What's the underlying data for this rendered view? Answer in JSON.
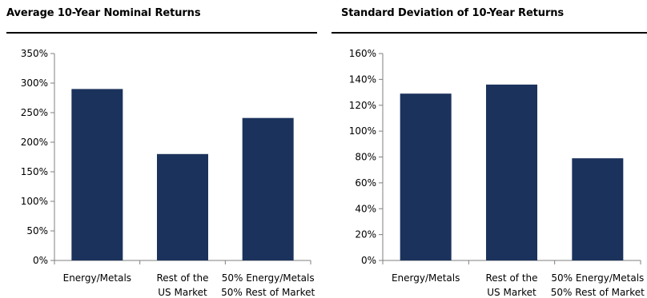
{
  "chart_data": [
    {
      "type": "bar",
      "title": "Average 10-Year Nominal Returns",
      "categories": [
        [
          "Energy/Metals"
        ],
        [
          "Rest of the",
          "US Market"
        ],
        [
          "50% Energy/Metals",
          "50% Rest of Market"
        ]
      ],
      "values": [
        290,
        180,
        241
      ],
      "value_format": "percent",
      "ylim": [
        0,
        350
      ],
      "ytick_step": 50,
      "yticks": [
        "0%",
        "50%",
        "100%",
        "150%",
        "200%",
        "250%",
        "300%",
        "350%"
      ],
      "xlabel": "",
      "ylabel": "",
      "grid": false,
      "legend": "none",
      "bar_color": "#1b335c"
    },
    {
      "type": "bar",
      "title": "Standard Deviation of 10-Year Returns",
      "categories": [
        [
          "Energy/Metals"
        ],
        [
          "Rest of the",
          "US Market"
        ],
        [
          "50% Energy/Metals",
          "50% Rest of Market"
        ]
      ],
      "values": [
        129,
        136,
        79
      ],
      "value_format": "percent",
      "ylim": [
        0,
        160
      ],
      "ytick_step": 20,
      "yticks": [
        "0%",
        "20%",
        "40%",
        "60%",
        "80%",
        "100%",
        "120%",
        "140%",
        "160%"
      ],
      "xlabel": "",
      "ylabel": "",
      "grid": false,
      "legend": "none",
      "bar_color": "#1b335c"
    }
  ]
}
